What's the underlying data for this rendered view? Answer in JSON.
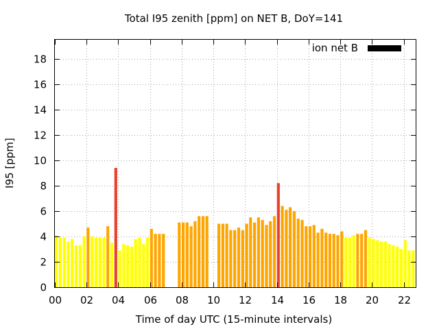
{
  "chart_data": {
    "type": "bar",
    "title": "Total I95 zenith [ppm] on NET B, DoY=141",
    "xlabel": "Time of day UTC (15-minute intervals)",
    "ylabel": "I95 [ppm]",
    "xlim": [
      0,
      22.75
    ],
    "ylim": [
      0,
      19.5
    ],
    "xticks": [
      0,
      2,
      4,
      6,
      8,
      10,
      12,
      14,
      16,
      18,
      20,
      22
    ],
    "xtick_labels": [
      "00",
      "02",
      "04",
      "06",
      "08",
      "10",
      "12",
      "14",
      "16",
      "18",
      "20",
      "22"
    ],
    "yticks": [
      0,
      2,
      4,
      6,
      8,
      10,
      12,
      14,
      16,
      18
    ],
    "ytick_labels": [
      "0",
      "2",
      "4",
      "6",
      "8",
      "10",
      "12",
      "14",
      "16",
      "18"
    ],
    "grid": true,
    "legend": {
      "label": "ion net B",
      "position": "top-right",
      "color": "#000000"
    },
    "colors": {
      "low": "#ffff00",
      "medium": "#ffa500",
      "high": "#e8412c"
    },
    "bar_width_hours": 0.18,
    "bars": [
      {
        "x": 0.0,
        "value": 4.1,
        "level": "low"
      },
      {
        "x": 0.25,
        "value": 3.9,
        "level": "low"
      },
      {
        "x": 0.5,
        "value": 3.9,
        "level": "low"
      },
      {
        "x": 0.75,
        "value": 3.6,
        "level": "low"
      },
      {
        "x": 1.0,
        "value": 3.8,
        "level": "low"
      },
      {
        "x": 1.25,
        "value": 3.3,
        "level": "low"
      },
      {
        "x": 1.5,
        "value": 3.3,
        "level": "low"
      },
      {
        "x": 1.75,
        "value": 4.0,
        "level": "low"
      },
      {
        "x": 2.0,
        "value": 4.7,
        "level": "medium"
      },
      {
        "x": 2.25,
        "value": 4.0,
        "level": "low"
      },
      {
        "x": 2.5,
        "value": 3.9,
        "level": "low"
      },
      {
        "x": 2.75,
        "value": 3.9,
        "level": "low"
      },
      {
        "x": 3.0,
        "value": 3.9,
        "level": "low"
      },
      {
        "x": 3.25,
        "value": 4.8,
        "level": "medium"
      },
      {
        "x": 3.5,
        "value": 3.5,
        "level": "low"
      },
      {
        "x": 3.75,
        "value": 9.4,
        "level": "high"
      },
      {
        "x": 4.0,
        "value": 2.9,
        "level": "low"
      },
      {
        "x": 4.25,
        "value": 3.4,
        "level": "low"
      },
      {
        "x": 4.5,
        "value": 3.3,
        "level": "low"
      },
      {
        "x": 4.75,
        "value": 3.2,
        "level": "low"
      },
      {
        "x": 5.0,
        "value": 3.8,
        "level": "low"
      },
      {
        "x": 5.25,
        "value": 3.9,
        "level": "low"
      },
      {
        "x": 5.5,
        "value": 3.4,
        "level": "low"
      },
      {
        "x": 5.75,
        "value": 3.9,
        "level": "low"
      },
      {
        "x": 6.0,
        "value": 4.6,
        "level": "medium"
      },
      {
        "x": 6.25,
        "value": 4.2,
        "level": "medium"
      },
      {
        "x": 6.5,
        "value": 4.2,
        "level": "medium"
      },
      {
        "x": 6.75,
        "value": 4.2,
        "level": "medium"
      },
      {
        "x": 7.75,
        "value": 5.1,
        "level": "medium"
      },
      {
        "x": 8.0,
        "value": 5.1,
        "level": "medium"
      },
      {
        "x": 8.25,
        "value": 5.1,
        "level": "medium"
      },
      {
        "x": 8.5,
        "value": 4.8,
        "level": "medium"
      },
      {
        "x": 8.75,
        "value": 5.2,
        "level": "medium"
      },
      {
        "x": 9.0,
        "value": 5.6,
        "level": "medium"
      },
      {
        "x": 9.25,
        "value": 5.6,
        "level": "medium"
      },
      {
        "x": 9.5,
        "value": 5.6,
        "level": "medium"
      },
      {
        "x": 10.25,
        "value": 5.0,
        "level": "medium"
      },
      {
        "x": 10.5,
        "value": 5.0,
        "level": "medium"
      },
      {
        "x": 10.75,
        "value": 5.0,
        "level": "medium"
      },
      {
        "x": 11.0,
        "value": 4.5,
        "level": "medium"
      },
      {
        "x": 11.25,
        "value": 4.5,
        "level": "medium"
      },
      {
        "x": 11.5,
        "value": 4.7,
        "level": "medium"
      },
      {
        "x": 11.75,
        "value": 4.5,
        "level": "medium"
      },
      {
        "x": 12.0,
        "value": 5.0,
        "level": "medium"
      },
      {
        "x": 12.25,
        "value": 5.5,
        "level": "medium"
      },
      {
        "x": 12.5,
        "value": 5.1,
        "level": "medium"
      },
      {
        "x": 12.75,
        "value": 5.5,
        "level": "medium"
      },
      {
        "x": 13.0,
        "value": 5.3,
        "level": "medium"
      },
      {
        "x": 13.25,
        "value": 4.9,
        "level": "medium"
      },
      {
        "x": 13.5,
        "value": 5.2,
        "level": "medium"
      },
      {
        "x": 13.75,
        "value": 5.6,
        "level": "medium"
      },
      {
        "x": 14.0,
        "value": 8.2,
        "level": "high"
      },
      {
        "x": 14.25,
        "value": 6.4,
        "level": "medium"
      },
      {
        "x": 14.5,
        "value": 6.1,
        "level": "medium"
      },
      {
        "x": 14.75,
        "value": 6.3,
        "level": "medium"
      },
      {
        "x": 15.0,
        "value": 6.0,
        "level": "medium"
      },
      {
        "x": 15.25,
        "value": 5.4,
        "level": "medium"
      },
      {
        "x": 15.5,
        "value": 5.3,
        "level": "medium"
      },
      {
        "x": 15.75,
        "value": 4.8,
        "level": "medium"
      },
      {
        "x": 16.0,
        "value": 4.8,
        "level": "medium"
      },
      {
        "x": 16.25,
        "value": 4.9,
        "level": "medium"
      },
      {
        "x": 16.5,
        "value": 4.3,
        "level": "medium"
      },
      {
        "x": 16.75,
        "value": 4.6,
        "level": "medium"
      },
      {
        "x": 17.0,
        "value": 4.3,
        "level": "medium"
      },
      {
        "x": 17.25,
        "value": 4.2,
        "level": "medium"
      },
      {
        "x": 17.5,
        "value": 4.2,
        "level": "medium"
      },
      {
        "x": 17.75,
        "value": 4.1,
        "level": "medium"
      },
      {
        "x": 18.0,
        "value": 4.4,
        "level": "medium"
      },
      {
        "x": 18.25,
        "value": 3.9,
        "level": "low"
      },
      {
        "x": 18.5,
        "value": 3.9,
        "level": "low"
      },
      {
        "x": 18.75,
        "value": 4.1,
        "level": "low"
      },
      {
        "x": 19.0,
        "value": 4.2,
        "level": "medium"
      },
      {
        "x": 19.25,
        "value": 4.2,
        "level": "medium"
      },
      {
        "x": 19.5,
        "value": 4.5,
        "level": "medium"
      },
      {
        "x": 19.75,
        "value": 3.9,
        "level": "low"
      },
      {
        "x": 20.0,
        "value": 3.8,
        "level": "low"
      },
      {
        "x": 20.25,
        "value": 3.7,
        "level": "low"
      },
      {
        "x": 20.5,
        "value": 3.6,
        "level": "low"
      },
      {
        "x": 20.75,
        "value": 3.6,
        "level": "low"
      },
      {
        "x": 21.0,
        "value": 3.4,
        "level": "low"
      },
      {
        "x": 21.25,
        "value": 3.3,
        "level": "low"
      },
      {
        "x": 21.5,
        "value": 3.2,
        "level": "low"
      },
      {
        "x": 21.75,
        "value": 3.0,
        "level": "low"
      },
      {
        "x": 22.0,
        "value": 3.7,
        "level": "low"
      },
      {
        "x": 22.25,
        "value": 2.9,
        "level": "low"
      },
      {
        "x": 22.5,
        "value": 2.9,
        "level": "low"
      }
    ]
  }
}
